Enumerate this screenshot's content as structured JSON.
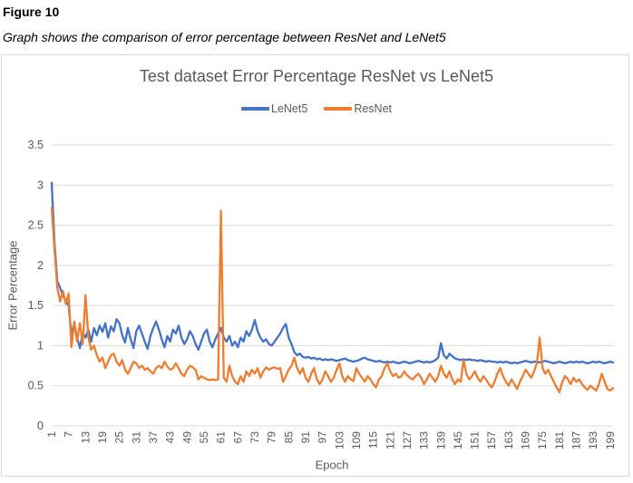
{
  "figure": {
    "label": "Figure 10",
    "description": "Graph shows the comparison of error percentage between ResNet and LeNet5"
  },
  "chart_data": {
    "type": "line",
    "title": "Test dataset Error Percentage ResNet vs LeNet5",
    "xlabel": "Epoch",
    "ylabel": "Error Percentage",
    "x_start": 1,
    "x_end": 200,
    "x_tick_start": 1,
    "x_tick_step": 6,
    "x_tick_last": 199,
    "ylim": [
      0,
      3.5
    ],
    "y_tick_step": 0.5,
    "grid": "horizontal",
    "legend_position": "top",
    "series": [
      {
        "name": "LeNet5",
        "color": "#4472C4",
        "values": [
          3.03,
          2.28,
          1.8,
          1.72,
          1.62,
          1.56,
          1.5,
          1.14,
          1.28,
          1.1,
          0.97,
          1.16,
          1.1,
          1.2,
          1.05,
          1.22,
          1.13,
          1.25,
          1.17,
          1.28,
          1.1,
          1.24,
          1.18,
          1.33,
          1.28,
          1.13,
          1.04,
          1.22,
          1.08,
          0.97,
          1.18,
          1.25,
          1.15,
          1.05,
          0.96,
          1.12,
          1.22,
          1.3,
          1.2,
          1.08,
          0.98,
          1.12,
          1.05,
          1.2,
          1.15,
          1.25,
          1.1,
          1.02,
          1.08,
          1.18,
          1.12,
          1.02,
          0.95,
          1.05,
          1.15,
          1.2,
          1.05,
          0.98,
          1.08,
          1.15,
          1.22,
          1.1,
          1.05,
          1.12,
          1.0,
          1.05,
          0.98,
          1.1,
          1.05,
          1.18,
          1.12,
          1.2,
          1.32,
          1.18,
          1.1,
          1.05,
          1.08,
          1.02,
          1.0,
          1.05,
          1.1,
          1.15,
          1.22,
          1.27,
          1.1,
          1.02,
          0.92,
          0.88,
          0.9,
          0.86,
          0.85,
          0.86,
          0.84,
          0.85,
          0.83,
          0.84,
          0.82,
          0.83,
          0.82,
          0.83,
          0.82,
          0.81,
          0.82,
          0.83,
          0.84,
          0.82,
          0.81,
          0.8,
          0.81,
          0.82,
          0.84,
          0.85,
          0.83,
          0.82,
          0.81,
          0.8,
          0.81,
          0.8,
          0.79,
          0.8,
          0.79,
          0.8,
          0.79,
          0.78,
          0.79,
          0.8,
          0.79,
          0.78,
          0.79,
          0.8,
          0.81,
          0.8,
          0.79,
          0.8,
          0.79,
          0.8,
          0.82,
          0.85,
          1.03,
          0.88,
          0.84,
          0.9,
          0.87,
          0.84,
          0.83,
          0.82,
          0.83,
          0.82,
          0.83,
          0.82,
          0.82,
          0.81,
          0.82,
          0.81,
          0.8,
          0.81,
          0.8,
          0.8,
          0.79,
          0.8,
          0.79,
          0.8,
          0.79,
          0.78,
          0.79,
          0.78,
          0.79,
          0.8,
          0.81,
          0.8,
          0.79,
          0.8,
          0.8,
          0.79,
          0.8,
          0.81,
          0.8,
          0.79,
          0.78,
          0.79,
          0.8,
          0.79,
          0.78,
          0.79,
          0.8,
          0.79,
          0.8,
          0.79,
          0.8,
          0.79,
          0.78,
          0.79,
          0.8,
          0.79,
          0.8,
          0.79,
          0.78,
          0.79,
          0.8,
          0.79
        ]
      },
      {
        "name": "ResNet",
        "color": "#ED7D31",
        "values": [
          2.72,
          2.2,
          1.72,
          1.55,
          1.68,
          1.52,
          1.65,
          0.98,
          1.3,
          1.05,
          1.28,
          1.02,
          1.63,
          1.1,
          0.95,
          1.0,
          0.88,
          0.8,
          0.85,
          0.72,
          0.8,
          0.88,
          0.9,
          0.8,
          0.75,
          0.82,
          0.7,
          0.65,
          0.72,
          0.8,
          0.78,
          0.72,
          0.75,
          0.7,
          0.72,
          0.68,
          0.65,
          0.72,
          0.75,
          0.72,
          0.8,
          0.74,
          0.7,
          0.72,
          0.78,
          0.72,
          0.65,
          0.62,
          0.7,
          0.75,
          0.73,
          0.7,
          0.58,
          0.62,
          0.6,
          0.58,
          0.57,
          0.58,
          0.57,
          0.58,
          2.68,
          0.6,
          0.55,
          0.75,
          0.62,
          0.55,
          0.52,
          0.62,
          0.55,
          0.68,
          0.62,
          0.7,
          0.65,
          0.72,
          0.6,
          0.68,
          0.73,
          0.7,
          0.72,
          0.73,
          0.71,
          0.72,
          0.55,
          0.62,
          0.7,
          0.75,
          0.85,
          0.72,
          0.65,
          0.72,
          0.6,
          0.55,
          0.65,
          0.72,
          0.58,
          0.52,
          0.58,
          0.68,
          0.62,
          0.55,
          0.6,
          0.7,
          0.78,
          0.62,
          0.55,
          0.62,
          0.58,
          0.56,
          0.72,
          0.65,
          0.6,
          0.55,
          0.62,
          0.58,
          0.52,
          0.48,
          0.58,
          0.62,
          0.72,
          0.78,
          0.68,
          0.62,
          0.65,
          0.6,
          0.62,
          0.68,
          0.63,
          0.6,
          0.58,
          0.62,
          0.65,
          0.6,
          0.52,
          0.58,
          0.65,
          0.6,
          0.55,
          0.62,
          0.75,
          0.65,
          0.6,
          0.68,
          0.58,
          0.52,
          0.58,
          0.55,
          0.82,
          0.65,
          0.58,
          0.62,
          0.68,
          0.6,
          0.55,
          0.62,
          0.58,
          0.52,
          0.48,
          0.55,
          0.65,
          0.72,
          0.62,
          0.55,
          0.5,
          0.58,
          0.52,
          0.46,
          0.55,
          0.62,
          0.7,
          0.65,
          0.6,
          0.68,
          0.78,
          1.1,
          0.72,
          0.65,
          0.7,
          0.62,
          0.55,
          0.48,
          0.42,
          0.55,
          0.62,
          0.58,
          0.52,
          0.6,
          0.55,
          0.58,
          0.52,
          0.48,
          0.45,
          0.5,
          0.47,
          0.44,
          0.52,
          0.65,
          0.55,
          0.46,
          0.44,
          0.47
        ]
      }
    ]
  },
  "styles": {
    "title_color": "#595959",
    "axis_text_color": "#595959",
    "grid_color": "#D9D9D9",
    "border_color": "#D9D9D9"
  }
}
